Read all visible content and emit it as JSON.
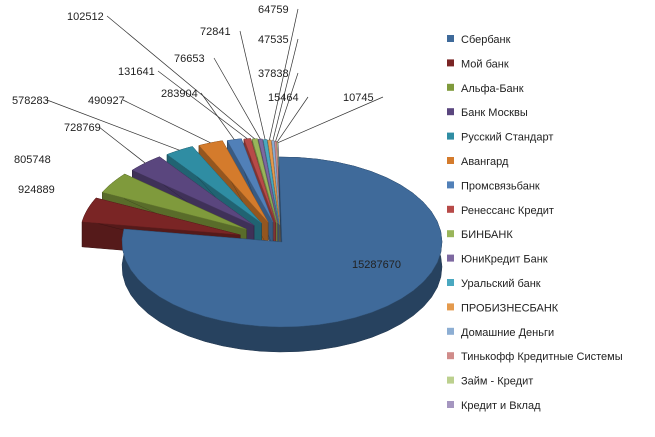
{
  "chart_data": {
    "type": "pie",
    "style": "3d-exploded",
    "legend_position": "right",
    "categories": [
      "Сбербанк",
      "Мой банк",
      "Альфа-Банк",
      "Банк Москвы",
      "Русский Стандарт",
      "Авангард",
      "Промсвязьбанк",
      "Ренессанс Кредит",
      "БИНБАНК",
      "ЮниКредит Банк",
      "Уральский банк",
      "ПРОБИЗНЕСБАНК",
      "Домашние Деньги",
      "Тинькофф Кредитные Системы",
      "Займ - Кредит",
      "Кредит и Вклад"
    ],
    "values": [
      15287670,
      924889,
      805748,
      728769,
      578283,
      490927,
      283904,
      131641,
      102512,
      76653,
      72841,
      64759,
      47535,
      37838,
      15464,
      10745
    ],
    "colors": [
      "#3f6a9a",
      "#7a2525",
      "#7f9a3c",
      "#5a467e",
      "#2f8da3",
      "#d47b2c",
      "#5180b8",
      "#b74a48",
      "#99b55a",
      "#7d68a0",
      "#4aa8c0",
      "#e49a4d",
      "#8daed3",
      "#d08c8a",
      "#bcd08e",
      "#a596c0"
    ]
  }
}
